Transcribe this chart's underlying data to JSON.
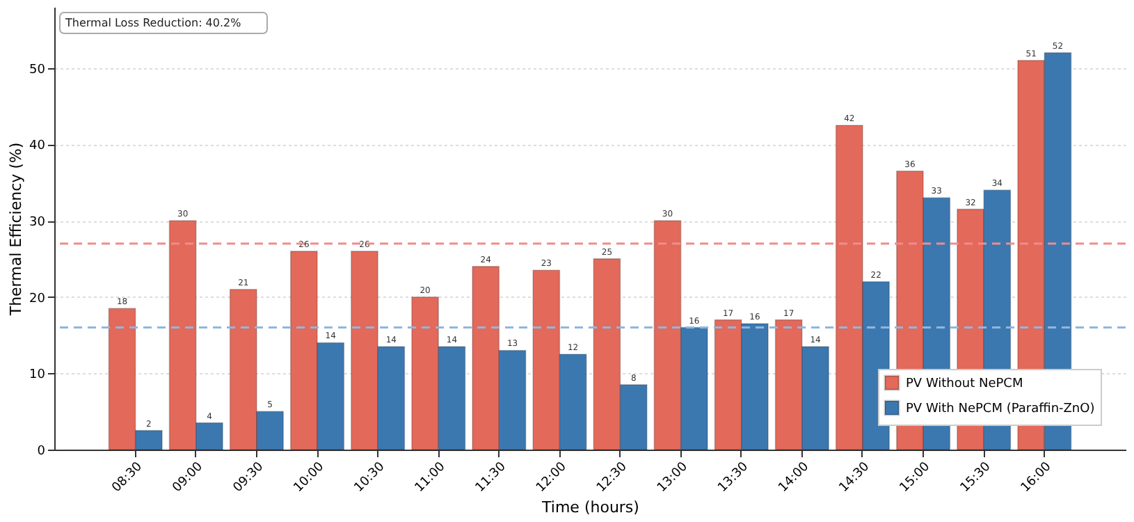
{
  "chart_data": {
    "type": "bar",
    "xlabel": "Time (hours)",
    "ylabel": "Thermal Efficiency (%)",
    "annotations": [
      "Thermal Loss Reduction: 40.2%"
    ],
    "categories": [
      "08:30",
      "09:00",
      "09:30",
      "10:00",
      "10:30",
      "11:00",
      "11:30",
      "12:00",
      "12:30",
      "13:00",
      "13:30",
      "14:00",
      "14:30",
      "15:00",
      "15:30",
      "16:00"
    ],
    "series": [
      {
        "name": "PV Without NePCM",
        "color": "#e3695a",
        "values": [
          18.5,
          30,
          21,
          26,
          26,
          20,
          24,
          23.5,
          25,
          30,
          17,
          17,
          42.5,
          36.5,
          31.5,
          51
        ],
        "value_labels": [
          "18",
          "30",
          "21",
          "26",
          "26",
          "20",
          "24",
          "23",
          "25",
          "30",
          "17",
          "17",
          "42",
          "36",
          "32",
          "51"
        ]
      },
      {
        "name": "PV With NePCM (Paraffin-ZnO)",
        "color": "#3c78b0",
        "values": [
          2.5,
          3.5,
          5,
          14,
          13.5,
          13.5,
          13,
          12.5,
          8.5,
          16,
          16.5,
          13.5,
          22,
          33,
          34,
          52
        ],
        "value_labels": [
          "2",
          "4",
          "5",
          "14",
          "14",
          "14",
          "13",
          "12",
          "8",
          "16",
          "16",
          "14",
          "22",
          "33",
          "34",
          "52"
        ]
      }
    ],
    "ref_lines": [
      {
        "axis": "y",
        "value": 27,
        "color": "#f08c8c",
        "line_style": "dashed"
      },
      {
        "axis": "y",
        "value": 16,
        "color": "#8fb6de",
        "line_style": "dashed"
      }
    ],
    "ylim": [
      0,
      58
    ],
    "yticks": [
      0,
      10,
      20,
      30,
      40,
      50
    ],
    "grid": "y",
    "legend": "bottom right"
  }
}
